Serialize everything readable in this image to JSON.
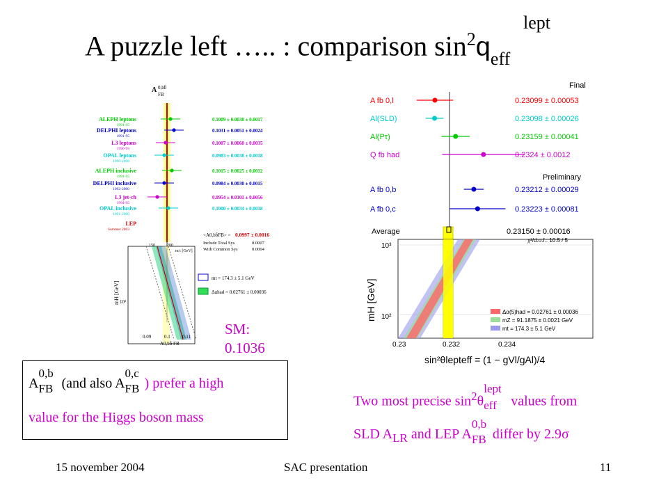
{
  "title": {
    "prefix": "A puzzle left ….. : comparison sin",
    "sup": "2",
    "theta": "q",
    "sub": "eff",
    "lept": "lept"
  },
  "footer": {
    "date": "15 november 2004",
    "center": "SAC presentation",
    "page": "11"
  },
  "sm_label": {
    "line1": "SM:",
    "line2": "0.1036"
  },
  "note_box": {
    "a1": "A",
    "a1_sup": "0,b",
    "a1_sub": "FB",
    "mid": "(and also A",
    "a2_sup": "0,c",
    "a2_sub": "FB",
    "tail": ") prefer a high",
    "line2": "value for the Higgs boson mass",
    "tail_color": "#cc00cc"
  },
  "bottom_note": {
    "l1a": "Two most precise sin",
    "l1_sup": "2",
    "l1_theta": "θ",
    "l1_sub": "eff",
    "l1_lept": "lept",
    "l1b": "values from",
    "l2a": "SLD A",
    "l2_sub": "LR",
    "l2b": "and LEP A",
    "l2_sup": "0,b",
    "l2_sub2": "FB",
    "l2c": "differ by 2.9σ"
  },
  "left_plot": {
    "header": "A",
    "header_sup": "0,bb̄",
    "header_sub": "FB",
    "rows": [
      {
        "label": "ALEPH leptons",
        "years": "1991-95",
        "value": "0.1009 ± 0.0038 ± 0.0017",
        "color": "#00cc00"
      },
      {
        "label": "DELPHI leptons",
        "years": "1991-95",
        "value": "0.1031 ± 0.0051 ± 0.0024",
        "color": "#0000cc"
      },
      {
        "label": "L3 leptons",
        "years": "1990-95",
        "value": "0.1007 ± 0.0060 ± 0.0035",
        "color": "#cc00cc"
      },
      {
        "label": "OPAL leptons",
        "years": "1990-2000",
        "value": "0.0983 ± 0.0038 ± 0.0018",
        "color": "#00cccc"
      },
      {
        "label": "ALEPH inclusive",
        "years": "1991-95",
        "value": "0.1015 ± 0.0025 ± 0.0012",
        "color": "#00cc00"
      },
      {
        "label": "DELPHI inclusive",
        "years": "1992-2000",
        "value": "0.0984 ± 0.0030 ± 0.0015",
        "color": "#0000cc"
      },
      {
        "label": "L3 jet-ch",
        "years": "1994-95",
        "value": "0.0954 ± 0.0101 ± 0.0056",
        "color": "#cc00cc"
      },
      {
        "label": "OPAL inclusive",
        "years": "1991-2000",
        "value": "0.1000 ± 0.0034 ± 0.0018",
        "color": "#00cccc"
      },
      {
        "label": "LEP",
        "years": "Summer 2003",
        "value": "",
        "color": "#cc0000"
      }
    ],
    "avg": {
      "label": "<A0,bb̄FB> =",
      "value": "0.0997 ± 0.0016",
      "sys1": "Include Total  Sys",
      "sys1v": "0.0007",
      "sys2": "With Common Sys",
      "sys2v": "0.0004"
    },
    "mtop_top": "150",
    "mtop_top2": "200",
    "mtop_unit": "m t [GeV]",
    "ylabel": "mH [GeV]",
    "ytick": "10²",
    "xticks": [
      "0.09",
      "0.1",
      "0.11"
    ],
    "xlabel": "A0,bb̄ FB",
    "legend": [
      {
        "text": "mt = 174.3 ± 5.1 GeV",
        "color": "#0000cc"
      },
      {
        "text": "Δαhad = 0.02761 ± 0.00036",
        "color": "#00cc00"
      }
    ]
  },
  "right_plot": {
    "final_label": "Final",
    "prelim_label": "Preliminary",
    "measurements": [
      {
        "label": "A fb 0,l",
        "value": "0.23099 ± 0.00053",
        "color": "#ff0000",
        "x": 0.23099,
        "err": 0.00053
      },
      {
        "label": "Al(SLD)",
        "value": "0.23098 ± 0.00026",
        "color": "#00cccc",
        "x": 0.23098,
        "err": 0.00026
      },
      {
        "label": "Al(Pτ)",
        "value": "0.23159 ± 0.00041",
        "color": "#00cc00",
        "x": 0.23159,
        "err": 0.00041
      },
      {
        "label": "Q fb had",
        "value": "0.2324 ± 0.0012",
        "color": "#cc00cc",
        "x": 0.2324,
        "err": 0.0012
      },
      {
        "label": "A fb 0,b",
        "value": "0.23212 ± 0.00029",
        "color": "#0000cc",
        "x": 0.23212,
        "err": 0.00029
      },
      {
        "label": "A fb 0,c",
        "value": "0.23223 ± 0.00081",
        "color": "#0000cc",
        "x": 0.23223,
        "err": 0.00081
      }
    ],
    "average": {
      "label": "Average",
      "value": "0.23150 ± 0.00016",
      "x": 0.2315,
      "err": 0.00016,
      "chi2": "χ²/d.o.f.: 10.5 / 5"
    },
    "ylabel": "mH  [GeV]",
    "yticks": [
      "10³",
      "10²"
    ],
    "xticks": [
      "0.23",
      "0.232",
      "0.234"
    ],
    "xlabel": "sin²θlepteff = (1 − gVl/gAl)/4",
    "legend": [
      {
        "text": "Δα(5)had = 0.02761 ± 0.00036",
        "color": "#ff6666"
      },
      {
        "text": "mZ = 91.1875 ± 0.0021 GeV",
        "color": "#66cc66"
      },
      {
        "text": "mt = 174.3 ± 5.1 GeV",
        "color": "#6666cc"
      }
    ]
  }
}
